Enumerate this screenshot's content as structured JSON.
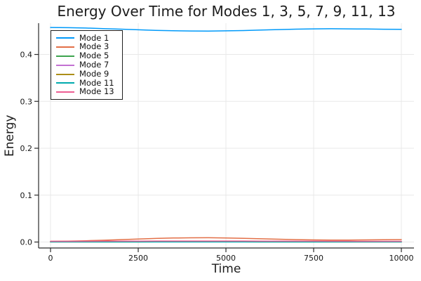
{
  "chart_data": {
    "type": "line",
    "title": "Energy Over Time for Modes 1, 3, 5, 7, 9, 11, 13",
    "xlabel": "Time",
    "ylabel": "Energy",
    "xlim": [
      0,
      10000
    ],
    "ylim": [
      -0.0127,
      0.4667
    ],
    "grid": true,
    "legend_position": "top-left",
    "xticks": [
      0,
      2500,
      5000,
      7500,
      10000
    ],
    "xtick_labels": [
      "0",
      "2500",
      "5000",
      "7500",
      "10000"
    ],
    "yticks": [
      0.0,
      0.1,
      0.2,
      0.3,
      0.4
    ],
    "ytick_labels": [
      "0.0",
      "0.1",
      "0.2",
      "0.3",
      "0.4"
    ],
    "x": [
      0,
      500,
      1000,
      1500,
      2000,
      2500,
      3000,
      3500,
      4000,
      4500,
      5000,
      5500,
      6000,
      6500,
      7000,
      7500,
      8000,
      8500,
      9000,
      9500,
      10000
    ],
    "series": [
      {
        "name": "Mode 1",
        "color": "#009AFA",
        "values": [
          0.4575,
          0.4571,
          0.4563,
          0.4552,
          0.4539,
          0.4526,
          0.4514,
          0.4505,
          0.45,
          0.4499,
          0.4503,
          0.451,
          0.452,
          0.453,
          0.4539,
          0.4545,
          0.4548,
          0.4546,
          0.4542,
          0.4538,
          0.4535
        ]
      },
      {
        "name": "Mode 3",
        "color": "#E36F47",
        "values": [
          0.0015,
          0.0019,
          0.0027,
          0.0038,
          0.0051,
          0.0064,
          0.0076,
          0.0085,
          0.009,
          0.0091,
          0.0087,
          0.008,
          0.007,
          0.006,
          0.0051,
          0.0045,
          0.0042,
          0.0043,
          0.0046,
          0.0049,
          0.0051
        ]
      },
      {
        "name": "Mode 5",
        "color": "#3DA44E",
        "values": [
          0.0005,
          0.0005,
          0.0006,
          0.0006,
          0.0007,
          0.0007,
          0.0008,
          0.0008,
          0.0008,
          0.0008,
          0.0008,
          0.0007,
          0.0007,
          0.0006,
          0.0006,
          0.0006,
          0.0005,
          0.0005,
          0.0005,
          0.0005,
          0.0005
        ]
      },
      {
        "name": "Mode 7",
        "color": "#C371D2",
        "values": [
          0.0003,
          0.0003,
          0.0003,
          0.0003,
          0.0004,
          0.0004,
          0.0004,
          0.0004,
          0.0004,
          0.0004,
          0.0004,
          0.0004,
          0.0004,
          0.0003,
          0.0003,
          0.0003,
          0.0003,
          0.0003,
          0.0003,
          0.0003,
          0.0003
        ]
      },
      {
        "name": "Mode 9",
        "color": "#AC8E18",
        "values": [
          0.0002,
          0.0002,
          0.0002,
          0.0002,
          0.0002,
          0.0002,
          0.0003,
          0.0003,
          0.0003,
          0.0003,
          0.0003,
          0.0003,
          0.0002,
          0.0002,
          0.0002,
          0.0002,
          0.0002,
          0.0002,
          0.0002,
          0.0002,
          0.0002
        ]
      },
      {
        "name": "Mode 11",
        "color": "#00AAAE",
        "values": [
          0.0002,
          0.0002,
          0.0002,
          0.0002,
          0.0002,
          0.0002,
          0.0002,
          0.0002,
          0.0002,
          0.0002,
          0.0002,
          0.0002,
          0.0002,
          0.0002,
          0.0002,
          0.0002,
          0.0002,
          0.0002,
          0.0002,
          0.0002,
          0.0002
        ]
      },
      {
        "name": "Mode 13",
        "color": "#ED5E93",
        "values": [
          0.0016,
          0.0016,
          0.0017,
          0.0018,
          0.0019,
          0.002,
          0.0021,
          0.0021,
          0.0022,
          0.0022,
          0.0021,
          0.0021,
          0.002,
          0.0019,
          0.0018,
          0.0018,
          0.0017,
          0.0017,
          0.0016,
          0.0016,
          0.0016
        ]
      }
    ]
  },
  "colors": {
    "background": "#ffffff",
    "axis": "#2b2b2b",
    "grid": "#e8e8e8",
    "text": "#151515",
    "legend_border": "#1f1f1f"
  }
}
